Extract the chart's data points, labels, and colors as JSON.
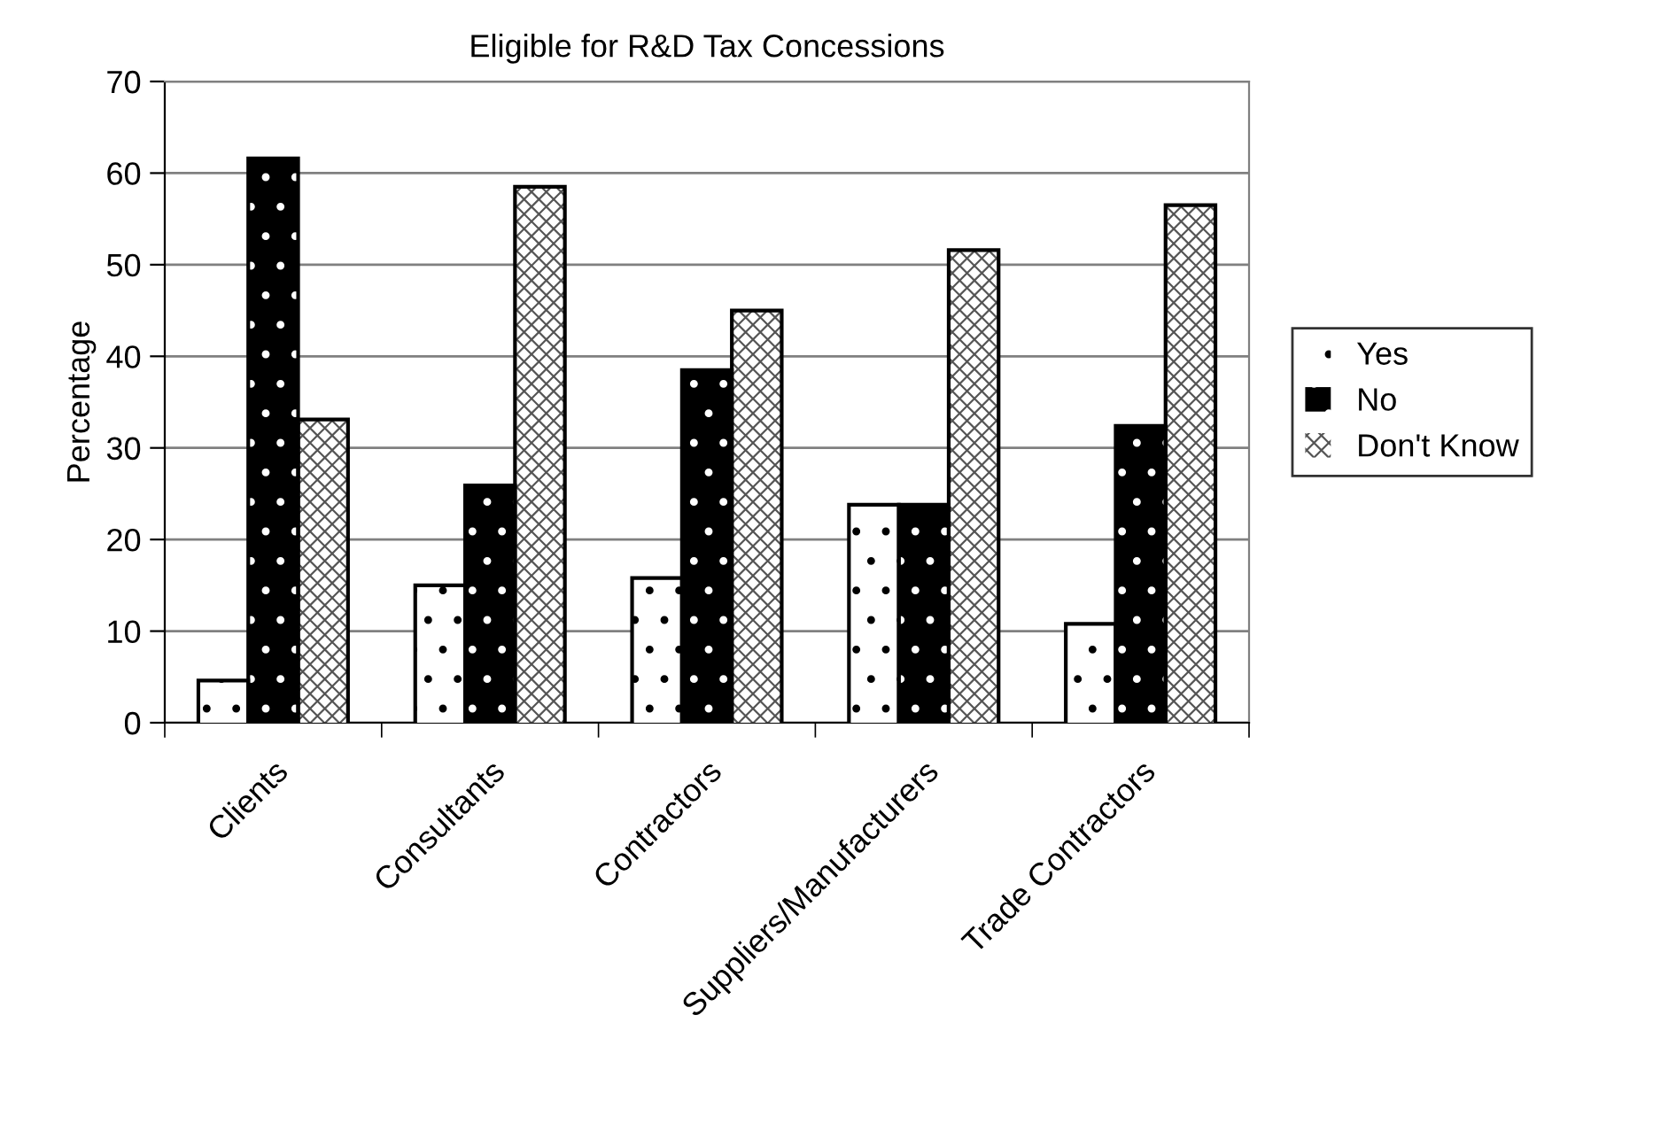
{
  "chart_data": {
    "type": "bar",
    "title": "Eligible for R&D Tax Concessions",
    "ylabel": "Percentage",
    "categories": [
      "Clients",
      "Consultants",
      "Contractors",
      "Suppliers/Manufacturers",
      "Trade Contractors"
    ],
    "series": [
      {
        "name": "Yes",
        "color": "#ffffff",
        "values": [
          4.6,
          15.0,
          15.8,
          23.8,
          10.8
        ]
      },
      {
        "name": "No",
        "color": "#000000",
        "values": [
          61.6,
          25.9,
          38.5,
          23.8,
          32.4
        ]
      },
      {
        "name": "Don't Know",
        "color": "#ffffff",
        "values": [
          33.1,
          58.5,
          45.0,
          51.6,
          56.5
        ]
      }
    ],
    "ylim": [
      0,
      70
    ],
    "yticks": [
      0,
      10,
      20,
      30,
      40,
      50,
      60,
      70
    ],
    "grid": "y",
    "legend": "right"
  }
}
